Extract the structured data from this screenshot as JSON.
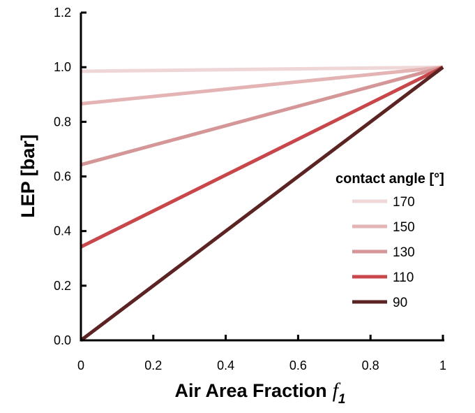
{
  "chart_data": {
    "type": "line",
    "xlabel": "Air Area Fraction",
    "xlabel_symbol": "f",
    "xlabel_subscript": "1",
    "ylabel": "LEP [bar]",
    "xlim": [
      0,
      1
    ],
    "ylim": [
      0,
      1.2
    ],
    "x_ticks": [
      "0",
      "0.2",
      "0.4",
      "0.6",
      "0.8",
      "1"
    ],
    "y_ticks": [
      "0.0",
      "0.2",
      "0.4",
      "0.6",
      "0.8",
      "1.0",
      "1.2"
    ],
    "grid": false,
    "legend": {
      "title": "contact angle [°]",
      "placement": "right"
    },
    "series": [
      {
        "name": "170",
        "color": "#f0d7d7",
        "x": [
          0,
          1
        ],
        "y": [
          0.985,
          1.0
        ]
      },
      {
        "name": "150",
        "color": "#e4b3b3",
        "x": [
          0,
          1
        ],
        "y": [
          0.866,
          1.0
        ]
      },
      {
        "name": "130",
        "color": "#d49696",
        "x": [
          0,
          1
        ],
        "y": [
          0.643,
          1.0
        ]
      },
      {
        "name": "110",
        "color": "#c8474b",
        "x": [
          0,
          1
        ],
        "y": [
          0.342,
          1.0
        ]
      },
      {
        "name": "90",
        "color": "#5c2323",
        "x": [
          0,
          1
        ],
        "y": [
          0.0,
          1.0
        ]
      }
    ]
  }
}
